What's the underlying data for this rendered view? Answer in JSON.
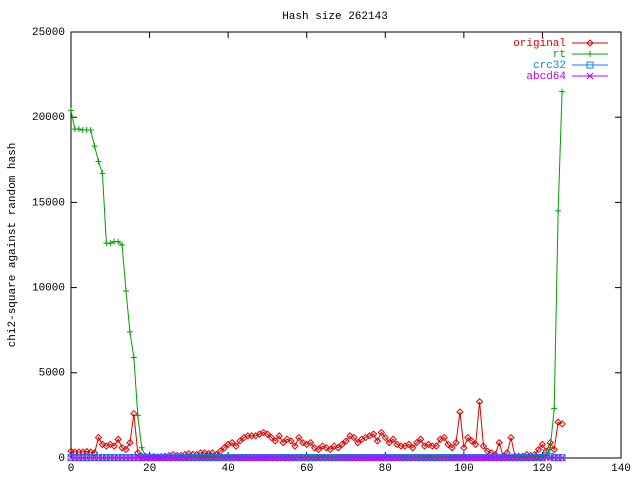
{
  "chart_data": {
    "type": "line",
    "title": "Hash size 262143",
    "y_label": "chi2-square against random hash",
    "xlim": [
      0,
      140
    ],
    "xticks": [
      0,
      20,
      40,
      60,
      80,
      100,
      120,
      140
    ],
    "ylim": [
      0,
      25000
    ],
    "yticks": [
      0,
      5000,
      10000,
      15000,
      20000,
      25000
    ],
    "legend": "top-right",
    "x": [
      0,
      1,
      2,
      3,
      4,
      5,
      6,
      7,
      8,
      9,
      10,
      11,
      12,
      13,
      14,
      15,
      16,
      17,
      18,
      19,
      20,
      21,
      22,
      23,
      24,
      25,
      26,
      27,
      28,
      29,
      30,
      31,
      32,
      33,
      34,
      35,
      36,
      37,
      38,
      39,
      40,
      41,
      42,
      43,
      44,
      45,
      46,
      47,
      48,
      49,
      50,
      51,
      52,
      53,
      54,
      55,
      56,
      57,
      58,
      59,
      60,
      61,
      62,
      63,
      64,
      65,
      66,
      67,
      68,
      69,
      70,
      71,
      72,
      73,
      74,
      75,
      76,
      77,
      78,
      79,
      80,
      81,
      82,
      83,
      84,
      85,
      86,
      87,
      88,
      89,
      90,
      91,
      92,
      93,
      94,
      95,
      96,
      97,
      98,
      99,
      100,
      101,
      102,
      103,
      104,
      105,
      106,
      107,
      108,
      109,
      110,
      111,
      112,
      113,
      114,
      115,
      116,
      117,
      118,
      119,
      120,
      121,
      122,
      123,
      124,
      125
    ],
    "series": [
      {
        "name": "original",
        "color": "#e00000",
        "marker": "diamond",
        "values": [
          400,
          350,
          350,
          350,
          380,
          350,
          300,
          1200,
          800,
          700,
          800,
          700,
          1100,
          600,
          500,
          900,
          2600,
          300,
          100,
          100,
          100,
          80,
          60,
          80,
          100,
          150,
          200,
          150,
          150,
          200,
          250,
          200,
          200,
          300,
          300,
          250,
          300,
          200,
          400,
          600,
          800,
          900,
          700,
          1000,
          1200,
          1300,
          1300,
          1300,
          1400,
          1500,
          1400,
          1200,
          1000,
          1300,
          900,
          1100,
          1000,
          700,
          1200,
          900,
          800,
          900,
          600,
          500,
          700,
          600,
          500,
          700,
          600,
          800,
          1000,
          1300,
          1200,
          900,
          1100,
          1200,
          1300,
          1400,
          1000,
          1500,
          1200,
          900,
          1100,
          800,
          700,
          700,
          800,
          600,
          900,
          1100,
          700,
          800,
          700,
          700,
          1100,
          1200,
          800,
          600,
          900,
          2700,
          600,
          1200,
          1000,
          800,
          3300,
          700,
          400,
          300,
          200,
          900,
          100,
          300,
          1200,
          100,
          100,
          100,
          200,
          150,
          200,
          500,
          800,
          400,
          900,
          500,
          2100,
          2000
        ]
      },
      {
        "name": "rt",
        "color": "#00a000",
        "marker": "plus",
        "values": [
          20400,
          19300,
          19300,
          19250,
          19250,
          19250,
          18300,
          17400,
          16700,
          12600,
          12600,
          12700,
          12700,
          12500,
          9800,
          7400,
          5900,
          2500,
          600,
          100,
          50,
          50,
          50,
          50,
          50,
          50,
          50,
          50,
          50,
          50,
          50,
          50,
          50,
          50,
          50,
          50,
          50,
          50,
          50,
          50,
          50,
          50,
          50,
          50,
          50,
          50,
          50,
          50,
          50,
          50,
          50,
          50,
          50,
          50,
          50,
          50,
          50,
          50,
          50,
          50,
          50,
          50,
          50,
          50,
          50,
          50,
          50,
          50,
          50,
          50,
          50,
          50,
          50,
          50,
          50,
          50,
          50,
          50,
          50,
          50,
          50,
          50,
          50,
          50,
          50,
          50,
          50,
          50,
          50,
          50,
          50,
          50,
          50,
          50,
          50,
          50,
          50,
          50,
          50,
          50,
          50,
          50,
          50,
          50,
          50,
          50,
          50,
          50,
          50,
          50,
          50,
          50,
          50,
          50,
          50,
          50,
          50,
          50,
          50,
          50,
          50,
          200,
          600,
          2900,
          14500,
          21500
        ]
      },
      {
        "name": "crc32",
        "color": "#0080ff",
        "marker": "square",
        "values": [
          20,
          20,
          20,
          20,
          20,
          20,
          20,
          20,
          20,
          20,
          20,
          20,
          20,
          20,
          20,
          20,
          20,
          20,
          20,
          20,
          20,
          20,
          20,
          20,
          20,
          20,
          20,
          20,
          20,
          20,
          20,
          20,
          20,
          20,
          20,
          20,
          20,
          20,
          20,
          20,
          20,
          20,
          20,
          20,
          20,
          20,
          20,
          20,
          20,
          20,
          20,
          20,
          20,
          20,
          20,
          20,
          20,
          20,
          20,
          20,
          20,
          20,
          20,
          20,
          20,
          20,
          20,
          20,
          20,
          20,
          20,
          20,
          20,
          20,
          20,
          20,
          20,
          20,
          20,
          20,
          20,
          20,
          20,
          20,
          20,
          20,
          20,
          20,
          20,
          20,
          20,
          20,
          20,
          20,
          20,
          20,
          20,
          20,
          20,
          20,
          20,
          20,
          20,
          20,
          20,
          20,
          20,
          20,
          20,
          20,
          20,
          20,
          20,
          20,
          20,
          20,
          20,
          20,
          20,
          20,
          20,
          300,
          100,
          20,
          20,
          20
        ]
      },
      {
        "name": "abcd64",
        "color": "#c000ff",
        "marker": "cross",
        "values": [
          10,
          10,
          10,
          10,
          10,
          10,
          10,
          10,
          10,
          10,
          10,
          10,
          10,
          10,
          10,
          10,
          10,
          10,
          10,
          10,
          10,
          10,
          10,
          10,
          10,
          10,
          10,
          10,
          10,
          10,
          10,
          10,
          10,
          10,
          10,
          10,
          10,
          10,
          10,
          10,
          10,
          10,
          10,
          10,
          10,
          10,
          10,
          10,
          10,
          10,
          10,
          10,
          10,
          10,
          10,
          10,
          10,
          10,
          10,
          10,
          10,
          10,
          10,
          10,
          10,
          10,
          10,
          10,
          10,
          10,
          10,
          10,
          10,
          10,
          10,
          10,
          10,
          10,
          10,
          10,
          10,
          10,
          10,
          10,
          10,
          10,
          10,
          10,
          10,
          10,
          10,
          10,
          10,
          10,
          10,
          10,
          10,
          10,
          10,
          10,
          10,
          10,
          10,
          10,
          10,
          10,
          10,
          10,
          10,
          10,
          10,
          10,
          10,
          10,
          10,
          10,
          10,
          10,
          10,
          10,
          10,
          10,
          10,
          10,
          10,
          10
        ]
      }
    ]
  }
}
